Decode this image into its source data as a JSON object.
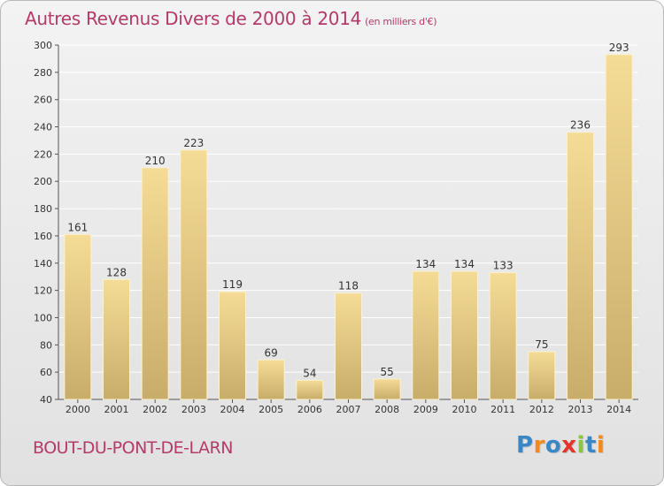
{
  "title": "Autres Revenus Divers de 2000 à 2014",
  "unit": "(en milliers d'€)",
  "commune": "BOUT-DU-PONT-DE-LARN",
  "logo": {
    "text": "Proxiti",
    "letters": [
      {
        "char": "P",
        "color": "#3a87c8"
      },
      {
        "char": "r",
        "color": "#f28a1e"
      },
      {
        "char": "o",
        "color": "#3a87c8"
      },
      {
        "char": "x",
        "color": "#e2352c"
      },
      {
        "char": "i",
        "color": "#8cc63e"
      },
      {
        "char": "t",
        "color": "#3a87c8"
      },
      {
        "char": "i",
        "color": "#f28a1e"
      }
    ]
  },
  "chart_data": {
    "type": "bar",
    "categories": [
      "2000",
      "2001",
      "2002",
      "2003",
      "2004",
      "2005",
      "2006",
      "2007",
      "2008",
      "2009",
      "2010",
      "2011",
      "2012",
      "2013",
      "2014"
    ],
    "values": [
      161,
      128,
      210,
      223,
      119,
      69,
      54,
      118,
      55,
      134,
      134,
      133,
      75,
      236,
      293
    ],
    "ylim": [
      40,
      300
    ],
    "yticks": [
      40,
      60,
      80,
      100,
      120,
      140,
      160,
      180,
      200,
      220,
      240,
      260,
      280,
      300
    ],
    "grid": true,
    "bar_color_top": "#f5dc96",
    "bar_color_bottom": "#c8ad6a"
  }
}
